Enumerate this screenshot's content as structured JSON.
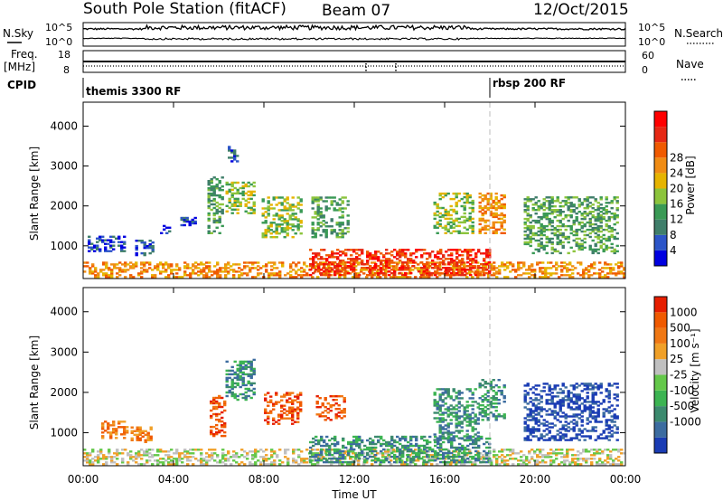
{
  "header": {
    "station": "South Pole Station (fitACF)",
    "beam": "Beam 07",
    "date": "12/Oct/2015"
  },
  "housekeeping": {
    "nsky_label": "N.Sky",
    "nsky_ticks": [
      "10^5",
      "10^0"
    ],
    "nsearch_label": "N.Search",
    "nsearch_ticks": [
      "10^5",
      "10^0"
    ],
    "freq_label_line1": "Freq.",
    "freq_label_line2": "[MHz]",
    "freq_ticks": [
      "18",
      "8"
    ],
    "nave_label": "Nave",
    "nave_ticks": [
      "60",
      "0"
    ],
    "cpid_label": "CPID",
    "cpid_modes": [
      {
        "name": "themis 3300 RF",
        "start_hour": 0
      },
      {
        "name": "rbsp 200 RF",
        "start_hour": 18
      }
    ]
  },
  "chart_data": [
    {
      "type": "heatmap",
      "title": "Power",
      "xlabel": "Time UT",
      "ylabel": "Slant Range [km]",
      "xlim_hours": [
        0,
        24
      ],
      "ylim_km": [
        180,
        4600
      ],
      "x_ticks": [
        "00:00",
        "04:00",
        "08:00",
        "12:00",
        "16:00",
        "20:00",
        "00:00"
      ],
      "y_ticks": [
        1000,
        2000,
        3000,
        4000
      ],
      "colorbar": {
        "label": "Power [dB]",
        "tick_labels": [
          "4",
          "8",
          "12",
          "16",
          "20",
          "24",
          "28"
        ],
        "colors": [
          "#0000e0",
          "#2c55c8",
          "#3f7e6a",
          "#3a9a55",
          "#8cc43c",
          "#e6b400",
          "#f08c14",
          "#f05a00",
          "#e62814",
          "#ff0000"
        ]
      },
      "echo_regions": [
        {
          "t0": 0.0,
          "t1": 24.0,
          "r0": 200,
          "r1": 600,
          "level": 6
        },
        {
          "t0": 10.0,
          "t1": 18.0,
          "r0": 250,
          "r1": 900,
          "level": 8
        },
        {
          "t0": 0.2,
          "t1": 1.8,
          "r0": 850,
          "r1": 1250,
          "level": 1
        },
        {
          "t0": 2.3,
          "t1": 3.1,
          "r0": 750,
          "r1": 1150,
          "level": 1
        },
        {
          "t0": 3.4,
          "t1": 3.8,
          "r0": 1300,
          "r1": 1500,
          "level": 1
        },
        {
          "t0": 4.3,
          "t1": 5.0,
          "r0": 1500,
          "r1": 1700,
          "level": 1
        },
        {
          "t0": 5.5,
          "t1": 6.2,
          "r0": 1300,
          "r1": 2700,
          "level": 3
        },
        {
          "t0": 6.3,
          "t1": 7.6,
          "r0": 1800,
          "r1": 2600,
          "level": 4
        },
        {
          "t0": 6.4,
          "t1": 6.8,
          "r0": 3100,
          "r1": 3500,
          "level": 1
        },
        {
          "t0": 7.9,
          "t1": 9.6,
          "r0": 1200,
          "r1": 2200,
          "level": 4
        },
        {
          "t0": 10.1,
          "t1": 11.7,
          "r0": 1200,
          "r1": 2200,
          "level": 3
        },
        {
          "t0": 15.5,
          "t1": 17.3,
          "r0": 1300,
          "r1": 2300,
          "level": 4
        },
        {
          "t0": 17.5,
          "t1": 18.6,
          "r0": 1300,
          "r1": 2300,
          "level": 6
        },
        {
          "t0": 19.5,
          "t1": 23.6,
          "r0": 800,
          "r1": 2200,
          "level": 3
        }
      ]
    },
    {
      "type": "heatmap",
      "title": "Velocity",
      "xlabel": "Time UT",
      "ylabel": "Slant Range [km]",
      "xlim_hours": [
        0,
        24
      ],
      "ylim_km": [
        180,
        4600
      ],
      "x_ticks": [
        "00:00",
        "04:00",
        "08:00",
        "12:00",
        "16:00",
        "20:00",
        "00:00"
      ],
      "y_ticks": [
        1000,
        2000,
        3000,
        4000
      ],
      "colorbar": {
        "label": "Velocity [m s⁻¹]",
        "tick_labels": [
          "1000",
          "500",
          "100",
          "25",
          "-25",
          "-100",
          "-500",
          "-1000"
        ],
        "colors": [
          "#1a3cb4",
          "#3c6ca0",
          "#3c8a6e",
          "#3cb452",
          "#64c84a",
          "#c0c0c0",
          "#f0a028",
          "#f07814",
          "#f05a00",
          "#e61e00"
        ]
      },
      "echo_regions": [
        {
          "t0": 0.0,
          "t1": 24.0,
          "r0": 200,
          "r1": 600,
          "level": 5
        },
        {
          "t0": 10.0,
          "t1": 18.0,
          "r0": 250,
          "r1": 900,
          "level": 2
        },
        {
          "t0": 0.8,
          "t1": 2.0,
          "r0": 850,
          "r1": 1300,
          "level": 7
        },
        {
          "t0": 2.1,
          "t1": 3.0,
          "r0": 750,
          "r1": 1150,
          "level": 7
        },
        {
          "t0": 5.6,
          "t1": 6.3,
          "r0": 900,
          "r1": 1900,
          "level": 8
        },
        {
          "t0": 6.3,
          "t1": 7.6,
          "r0": 1800,
          "r1": 2800,
          "level": 2
        },
        {
          "t0": 8.0,
          "t1": 9.6,
          "r0": 1200,
          "r1": 2000,
          "level": 8
        },
        {
          "t0": 10.3,
          "t1": 11.6,
          "r0": 1300,
          "r1": 1900,
          "level": 8
        },
        {
          "t0": 15.5,
          "t1": 17.5,
          "r0": 800,
          "r1": 2100,
          "level": 2
        },
        {
          "t0": 17.5,
          "t1": 18.6,
          "r0": 1300,
          "r1": 2300,
          "level": 2
        },
        {
          "t0": 19.5,
          "t1": 23.6,
          "r0": 800,
          "r1": 2200,
          "level": 0
        }
      ]
    }
  ]
}
